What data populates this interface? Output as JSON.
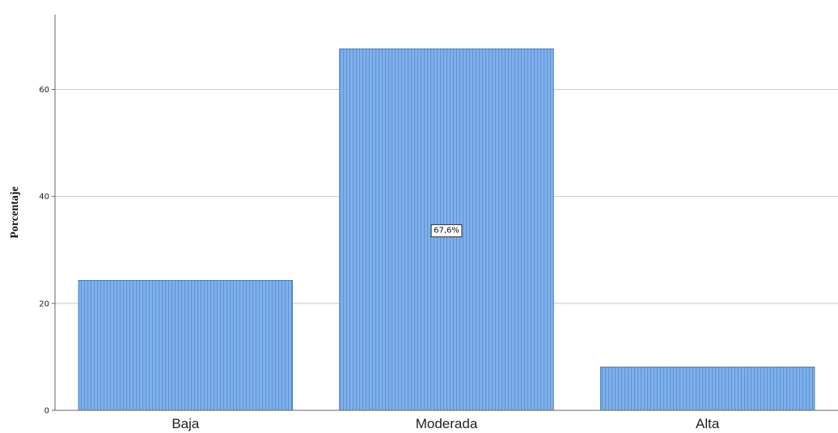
{
  "chart_data": {
    "type": "bar",
    "categories": [
      "Baja",
      "Moderada",
      "Alta"
    ],
    "values": [
      24.3,
      67.6,
      8.1
    ],
    "title": "",
    "xlabel": "",
    "ylabel": "Porcentaje",
    "ylim": [
      0,
      74
    ],
    "yticks": [
      0,
      20,
      40,
      60
    ],
    "ytick_labels": [
      "0",
      "20",
      "40",
      "60"
    ],
    "grid": true,
    "legend": "none",
    "data_labels": [
      {
        "category": "Moderada",
        "text": "67,6%"
      }
    ],
    "colors": {
      "bar_fill": "#7fb0ea",
      "bar_stripe": "#4f86cc",
      "bar_edge": "#3d6fb8",
      "grid": "#c8c8c8",
      "axis": "#666666"
    }
  }
}
